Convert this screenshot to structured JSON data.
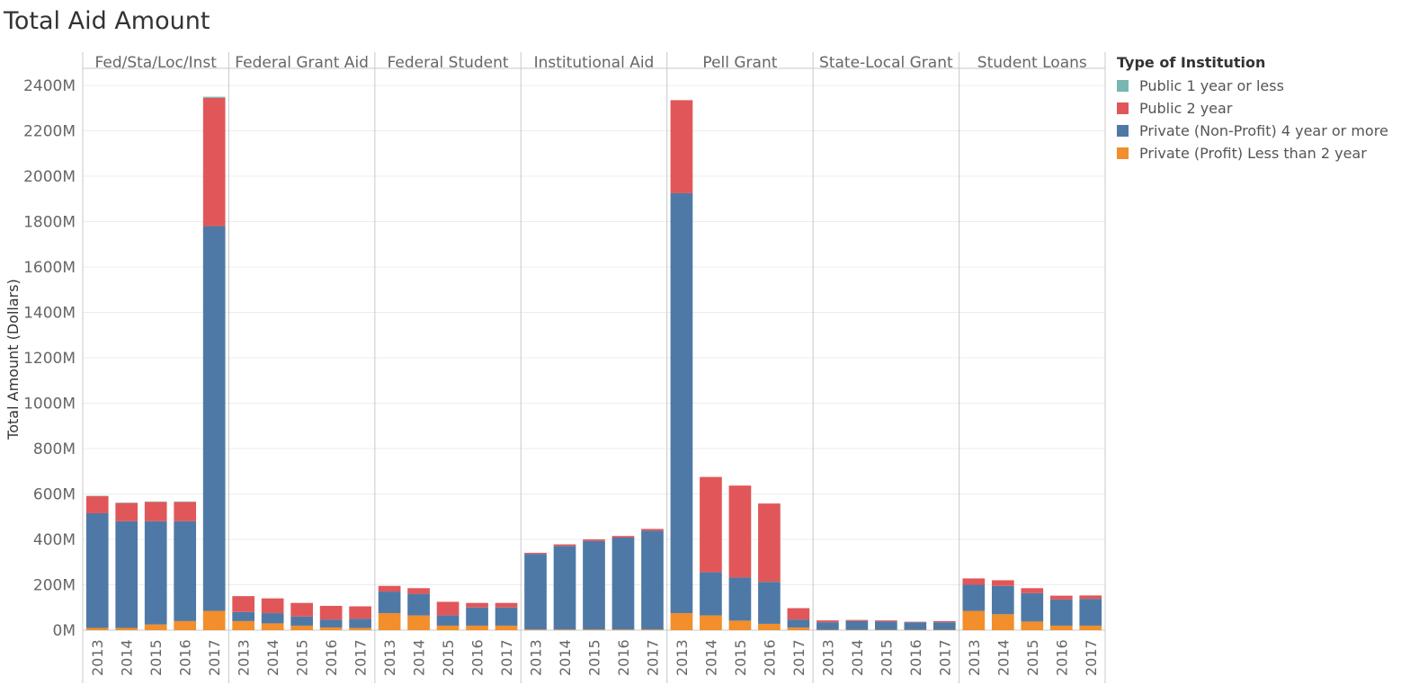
{
  "title": "Total Aid Amount",
  "legend": {
    "title": "Type of Institution",
    "items": [
      {
        "label": "Public 1 year or less",
        "color": "#76b7b2"
      },
      {
        "label": "Public 2 year",
        "color": "#e15759"
      },
      {
        "label": "Private (Non-Profit) 4 year or more",
        "color": "#4e79a7"
      },
      {
        "label": "Private (Profit) Less than 2 year",
        "color": "#f28e2b"
      }
    ]
  },
  "chart_data": {
    "type": "bar",
    "stacked": true,
    "ylabel": "Total Amount (Dollars)",
    "ylim": [
      0,
      2400
    ],
    "yticks": [
      0,
      200,
      400,
      600,
      800,
      1000,
      1200,
      1400,
      1600,
      1800,
      2000,
      2200,
      2400
    ],
    "ytick_labels": [
      "0M",
      "200M",
      "400M",
      "600M",
      "800M",
      "1000M",
      "1200M",
      "1400M",
      "1600M",
      "1800M",
      "2000M",
      "2200M",
      "2400M"
    ],
    "years": [
      "2013",
      "2014",
      "2015",
      "2016",
      "2017"
    ],
    "series_order": [
      "Private (Profit) Less than 2 year",
      "Private (Non-Profit) 4 year or more",
      "Public 2 year",
      "Public 1 year or less"
    ],
    "panels": [
      {
        "name": "Fed/Sta/Loc/Inst",
        "values": {
          "Private (Profit) Less than 2 year": [
            10,
            10,
            25,
            40,
            85
          ],
          "Private (Non-Profit) 4 year or more": [
            505,
            470,
            455,
            440,
            1695
          ],
          "Public 2 year": [
            75,
            80,
            85,
            85,
            565
          ],
          "Public 1 year or less": [
            2,
            2,
            2,
            2,
            5
          ]
        }
      },
      {
        "name": "Federal Grant Aid",
        "values": {
          "Private (Profit) Less than 2 year": [
            40,
            30,
            20,
            12,
            10
          ],
          "Private (Non-Profit) 4 year or more": [
            40,
            45,
            40,
            35,
            40
          ],
          "Public 2 year": [
            70,
            65,
            60,
            60,
            55
          ],
          "Public 1 year or less": [
            0,
            0,
            0,
            0,
            0
          ]
        }
      },
      {
        "name": "Federal Student",
        "values": {
          "Private (Profit) Less than 2 year": [
            75,
            65,
            20,
            20,
            20
          ],
          "Private (Non-Profit) 4 year or more": [
            95,
            95,
            45,
            80,
            80
          ],
          "Public 2 year": [
            25,
            25,
            60,
            20,
            20
          ],
          "Public 1 year or less": [
            0,
            0,
            0,
            0,
            0
          ]
        }
      },
      {
        "name": "Institutional Aid",
        "values": {
          "Private (Profit) Less than 2 year": [
            3,
            3,
            3,
            3,
            3
          ],
          "Private (Non-Profit) 4 year or more": [
            333,
            368,
            390,
            405,
            435
          ],
          "Public 2 year": [
            5,
            7,
            7,
            7,
            8
          ],
          "Public 1 year or less": [
            0,
            0,
            0,
            0,
            0
          ]
        }
      },
      {
        "name": "Pell Grant",
        "values": {
          "Private (Profit) Less than 2 year": [
            75,
            65,
            42,
            28,
            12
          ],
          "Private (Non-Profit) 4 year or more": [
            1850,
            190,
            190,
            185,
            35
          ],
          "Public 2 year": [
            410,
            420,
            405,
            345,
            50
          ],
          "Public 1 year or less": [
            0,
            0,
            0,
            0,
            0
          ]
        }
      },
      {
        "name": "State-Local Grant",
        "values": {
          "Private (Profit) Less than 2 year": [
            2,
            2,
            2,
            2,
            2
          ],
          "Private (Non-Profit) 4 year or more": [
            33,
            38,
            36,
            33,
            33
          ],
          "Public 2 year": [
            8,
            5,
            5,
            2,
            5
          ],
          "Public 1 year or less": [
            0,
            0,
            0,
            0,
            0
          ]
        }
      },
      {
        "name": "Student Loans",
        "values": {
          "Private (Profit) Less than 2 year": [
            85,
            70,
            38,
            20,
            20
          ],
          "Private (Non-Profit) 4 year or more": [
            115,
            125,
            125,
            115,
            118
          ],
          "Public 2 year": [
            28,
            25,
            22,
            17,
            15
          ],
          "Public 1 year or less": [
            0,
            0,
            0,
            0,
            0
          ]
        }
      }
    ]
  }
}
